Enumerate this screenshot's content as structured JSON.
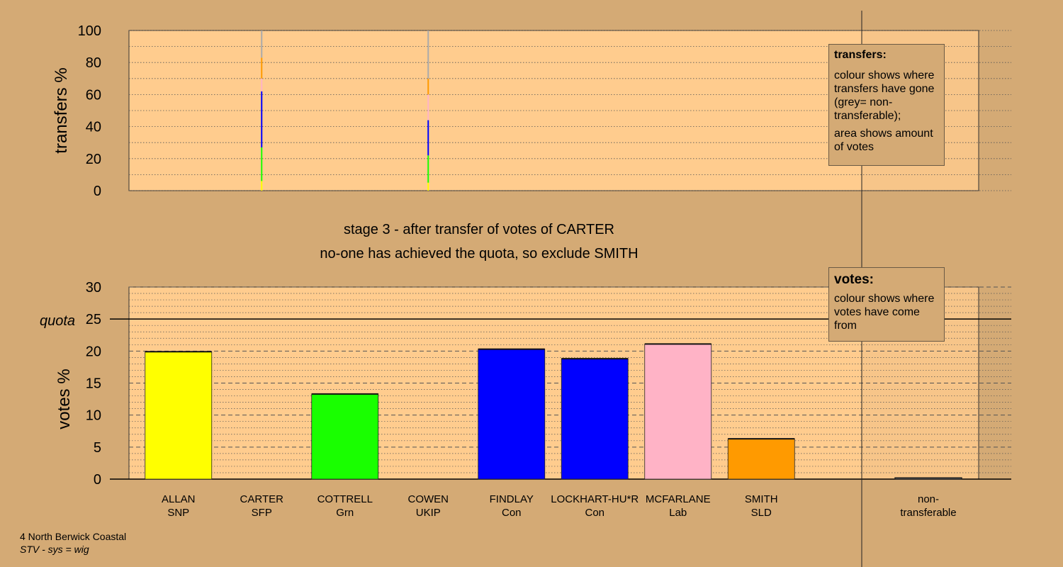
{
  "colors": {
    "background": "#d4aa75",
    "plot_area": "#ffcc8e",
    "ALLAN": "#ffff00",
    "CARTER": "#ffd39b",
    "COTTRELL": "#19ff00",
    "COWEN": "#ff99cc",
    "FINDLAY": "#0000ff",
    "LOCKHART": "#0000ff",
    "MCFARLANE": "#ffb3c6",
    "SMITH": "#ff9a00",
    "nontransferable": "#aaaaaa"
  },
  "stage_title": "stage 3 - after transfer of votes of CARTER",
  "stage_subtitle": "no-one has achieved the quota, so exclude SMITH",
  "legend_transfers": {
    "title": "transfers:",
    "line1": "colour shows where transfers have gone (grey= non-transferable);",
    "line2": "area shows amount of votes"
  },
  "legend_votes": {
    "title": "votes:",
    "line1": "colour shows where votes have come from"
  },
  "footer": {
    "area": "4 North Berwick Coastal",
    "system": "STV - sys = wig"
  },
  "chart_data": [
    {
      "type": "bar",
      "panel": "transfers",
      "ylabel": "transfers %",
      "ylim": [
        0,
        100
      ],
      "yticks": [
        0,
        20,
        40,
        60,
        80,
        100
      ],
      "grid": true,
      "columns": [
        {
          "candidate": "CARTER",
          "segments": [
            {
              "to": "ALLAN",
              "from": 0,
              "to_pct": 6,
              "color": "#ffff00"
            },
            {
              "to": "COTTRELL",
              "from": 6,
              "to_pct": 27,
              "color": "#19ff00"
            },
            {
              "to": "FINDLAY/LOCKHART",
              "from": 27,
              "to_pct": 62,
              "color": "#0000ff"
            },
            {
              "to": "MCFARLANE",
              "from": 62,
              "to_pct": 70,
              "color": "#ffb3c6"
            },
            {
              "to": "SMITH",
              "from": 70,
              "to_pct": 83,
              "color": "#ff9a00"
            },
            {
              "to": "non-transferable",
              "from": 83,
              "to_pct": 100,
              "color": "#aaaaaa"
            }
          ]
        },
        {
          "candidate": "COWEN",
          "segments": [
            {
              "to": "ALLAN",
              "from": 0,
              "to_pct": 5,
              "color": "#ffff00"
            },
            {
              "to": "COTTRELL",
              "from": 5,
              "to_pct": 22,
              "color": "#19ff00"
            },
            {
              "to": "FINDLAY/LOCKHART",
              "from": 22,
              "to_pct": 44,
              "color": "#0000ff"
            },
            {
              "to": "MCFARLANE",
              "from": 44,
              "to_pct": 60,
              "color": "#ffb3c6"
            },
            {
              "to": "SMITH",
              "from": 60,
              "to_pct": 70,
              "color": "#ff9a00"
            },
            {
              "to": "non-transferable",
              "from": 70,
              "to_pct": 100,
              "color": "#aaaaaa"
            }
          ]
        }
      ]
    },
    {
      "type": "bar",
      "panel": "votes",
      "ylabel": "votes %",
      "ylim": [
        0,
        30
      ],
      "yticks": [
        0,
        5,
        10,
        15,
        20,
        25,
        30
      ],
      "quota": 25,
      "quota_label": "quota",
      "grid": true,
      "categories": [
        {
          "name": "ALLAN",
          "party": "SNP",
          "value": 19.9,
          "color": "#ffff00"
        },
        {
          "name": "CARTER",
          "party": "SFP",
          "value": 0,
          "color": "#ffd39b"
        },
        {
          "name": "COTTRELL",
          "party": "Grn",
          "value": 13.3,
          "color": "#19ff00"
        },
        {
          "name": "COWEN",
          "party": "UKIP",
          "value": 0,
          "color": "#ff99cc"
        },
        {
          "name": "FINDLAY",
          "party": "Con",
          "value": 20.3,
          "color": "#0000ff"
        },
        {
          "name": "LOCKHART-HU*R",
          "party": "Con",
          "value": 18.8,
          "color": "#0000ff"
        },
        {
          "name": "MCFARLANE",
          "party": "Lab",
          "value": 21.1,
          "color": "#ffb3c6"
        },
        {
          "name": "SMITH",
          "party": "SLD",
          "value": 6.3,
          "color": "#ff9a00"
        }
      ],
      "nontransferable": {
        "label1": "non-",
        "label2": "transferable",
        "value": 0.2,
        "color": "#aaaaaa"
      }
    }
  ]
}
